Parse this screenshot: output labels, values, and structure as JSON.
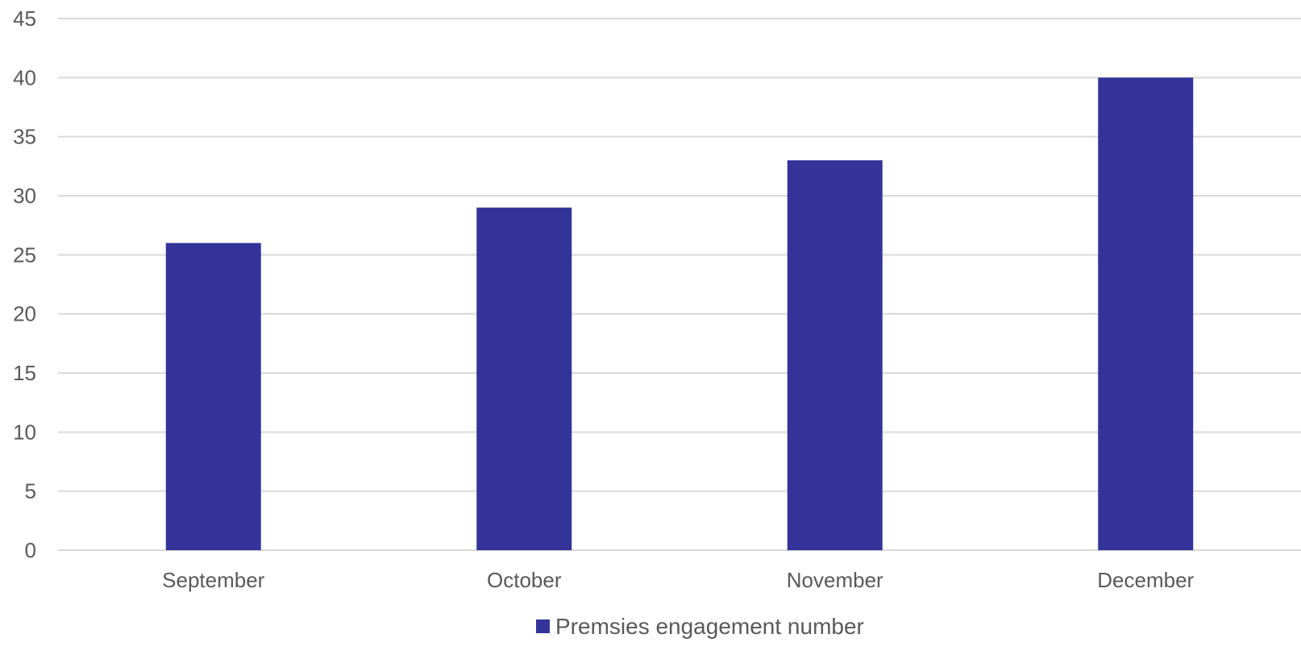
{
  "chart_data": {
    "type": "bar",
    "categories": [
      "September",
      "October",
      "November",
      "December"
    ],
    "series": [
      {
        "name": "Premsies engagement number",
        "values": [
          26,
          29,
          33,
          40
        ],
        "color": "#333399"
      }
    ],
    "title": "",
    "xlabel": "",
    "ylabel": "",
    "ylim": [
      0,
      45
    ],
    "yticks": [
      0,
      5,
      10,
      15,
      20,
      25,
      30,
      35,
      40,
      45
    ],
    "grid": true,
    "grid_color": "#d9d9d9",
    "legend_position": "bottom"
  }
}
